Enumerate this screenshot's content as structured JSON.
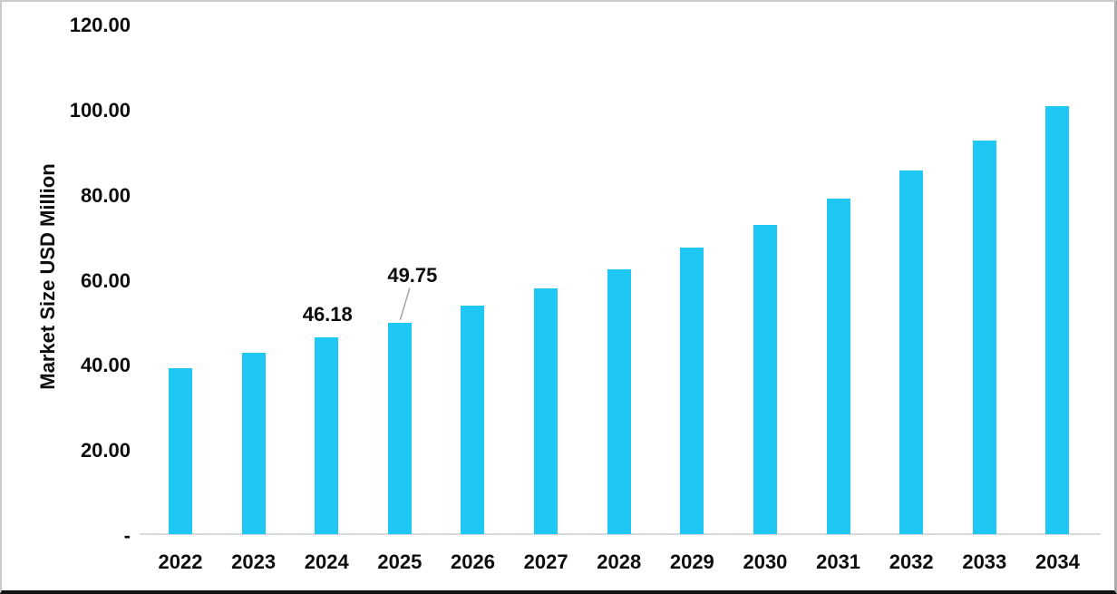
{
  "chart_data": {
    "type": "bar",
    "title": "",
    "xlabel": "",
    "ylabel": "Market Size USD Million",
    "categories": [
      "2022",
      "2023",
      "2024",
      "2025",
      "2026",
      "2027",
      "2028",
      "2029",
      "2030",
      "2031",
      "2032",
      "2033",
      "2034"
    ],
    "values": [
      39.1,
      42.6,
      46.18,
      49.75,
      53.8,
      57.8,
      62.3,
      67.4,
      72.8,
      78.8,
      85.6,
      92.5,
      100.7
    ],
    "labeled_points": [
      {
        "index": 2,
        "category": "2024",
        "text": "46.18",
        "leader": false
      },
      {
        "index": 3,
        "category": "2025",
        "text": "49.75",
        "leader": true
      }
    ],
    "ylim": [
      0,
      120
    ],
    "y_ticks": [
      {
        "value": 0,
        "label": "-"
      },
      {
        "value": 20,
        "label": "20.00"
      },
      {
        "value": 40,
        "label": "40.00"
      },
      {
        "value": 60,
        "label": "60.00"
      },
      {
        "value": 80,
        "label": "80.00"
      },
      {
        "value": 100,
        "label": "100.00"
      },
      {
        "value": 120,
        "label": "120.00"
      }
    ],
    "grid": "off",
    "legend": "none",
    "bar_color": "#1EC7F4",
    "axis_line_color": "#D9D9D9",
    "leader_line_color": "#A6A6A6",
    "text_color": "#0D0D0D"
  }
}
